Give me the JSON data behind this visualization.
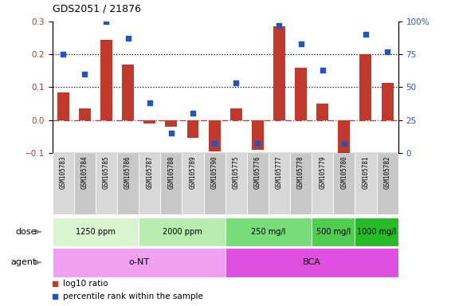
{
  "title": "GDS2051 / 21876",
  "samples": [
    "GSM105783",
    "GSM105784",
    "GSM105785",
    "GSM105786",
    "GSM105787",
    "GSM105788",
    "GSM105789",
    "GSM105790",
    "GSM105775",
    "GSM105776",
    "GSM105777",
    "GSM105778",
    "GSM105779",
    "GSM105780",
    "GSM105781",
    "GSM105782"
  ],
  "log10_ratio": [
    0.085,
    0.035,
    0.245,
    0.168,
    -0.01,
    -0.02,
    -0.055,
    -0.095,
    0.035,
    -0.09,
    0.285,
    0.16,
    0.05,
    -0.115,
    0.2,
    0.112
  ],
  "percentile_rank": [
    75,
    60,
    100,
    87,
    38,
    15,
    30,
    7,
    53,
    7,
    97,
    83,
    63,
    7,
    90,
    77
  ],
  "bar_color": "#c0392b",
  "dot_color": "#2255bb",
  "hline_color": "#cc3333",
  "ylim_left": [
    -0.1,
    0.3
  ],
  "ylim_right": [
    0,
    100
  ],
  "yticks_left": [
    -0.1,
    0.0,
    0.1,
    0.2,
    0.3
  ],
  "yticks_right": [
    0,
    25,
    50,
    75,
    100
  ],
  "ytick_labels_right": [
    "0",
    "25",
    "50",
    "75",
    "100%"
  ],
  "hlines": [
    0.1,
    0.2
  ],
  "dose_groups": [
    {
      "label": "1250 ppm",
      "start": 0,
      "end": 4,
      "color": "#d8f5d0"
    },
    {
      "label": "2000 ppm",
      "start": 4,
      "end": 8,
      "color": "#b8ecb0"
    },
    {
      "label": "250 mg/l",
      "start": 8,
      "end": 12,
      "color": "#78dc78"
    },
    {
      "label": "500 mg/l",
      "start": 12,
      "end": 14,
      "color": "#50cc50"
    },
    {
      "label": "1000 mg/l",
      "start": 14,
      "end": 16,
      "color": "#28bb28"
    }
  ],
  "agent_groups": [
    {
      "label": "o-NT",
      "start": 0,
      "end": 8,
      "color": "#f0a0f0"
    },
    {
      "label": "BCA",
      "start": 8,
      "end": 16,
      "color": "#e050e0"
    }
  ],
  "legend_items": [
    {
      "color": "#c0392b",
      "label": "log10 ratio"
    },
    {
      "color": "#2255bb",
      "label": "percentile rank within the sample"
    }
  ],
  "dose_label": "dose",
  "agent_label": "agent",
  "bar_width": 0.55
}
